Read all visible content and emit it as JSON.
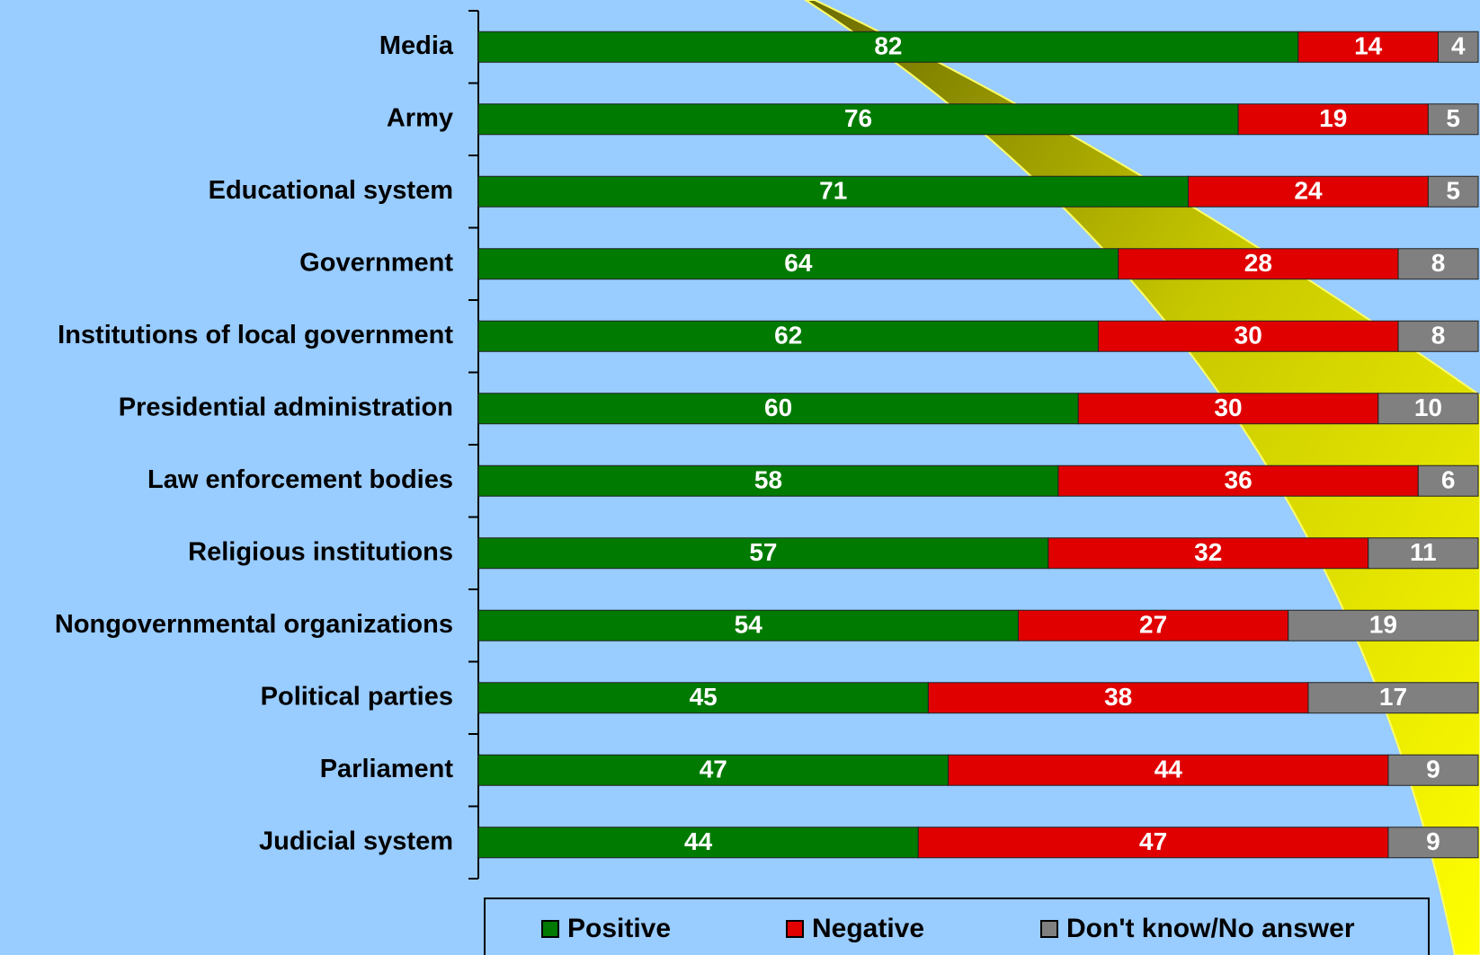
{
  "chart_data": {
    "type": "stacked-bar-horizontal",
    "categories": [
      "Media",
      "Army",
      "Educational system",
      "Government",
      "Institutions of local government",
      "Presidential administration",
      "Law enforcement bodies",
      "Religious institutions",
      "Nongovernmental organizations",
      "Political parties",
      "Parliament",
      "Judicial system"
    ],
    "series": [
      {
        "name": "Positive",
        "color": "#007a00",
        "values": [
          82,
          76,
          71,
          64,
          62,
          60,
          58,
          57,
          54,
          45,
          47,
          44
        ]
      },
      {
        "name": "Negative",
        "color": "#e00000",
        "values": [
          14,
          19,
          24,
          28,
          30,
          30,
          36,
          32,
          27,
          38,
          44,
          47
        ]
      },
      {
        "name": "Don't know/No answer",
        "color": "#808080",
        "values": [
          4,
          5,
          5,
          8,
          8,
          10,
          6,
          11,
          19,
          17,
          9,
          9
        ]
      }
    ],
    "xlim": [
      0,
      100
    ],
    "legend": "bottom"
  }
}
